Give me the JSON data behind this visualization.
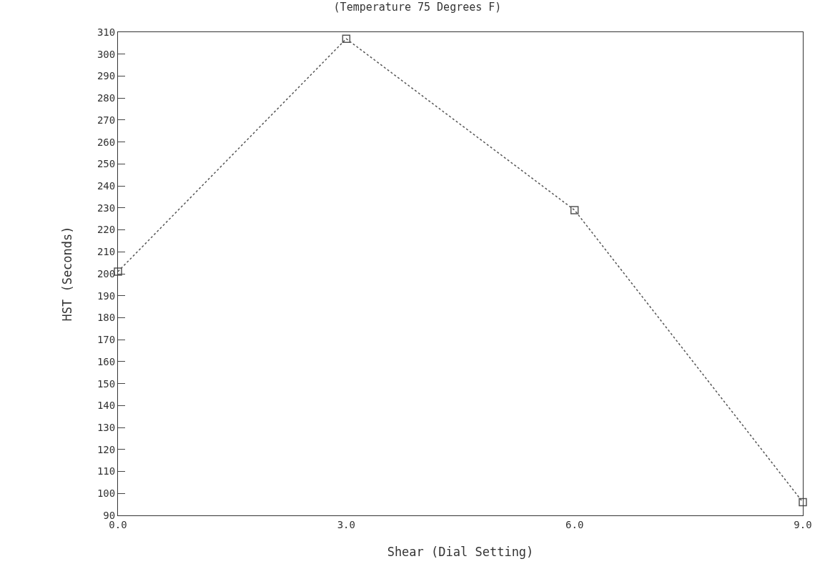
{
  "chart_data": {
    "type": "line",
    "title": "(Temperature 75 Degrees F)",
    "xlabel": "Shear (Dial Setting)",
    "ylabel": "HST (Seconds)",
    "x": [
      0,
      3,
      6,
      9
    ],
    "series": [
      {
        "color": "#555555",
        "values": [
          201,
          307,
          229,
          96
        ]
      }
    ],
    "xlim": [
      0,
      9
    ],
    "xticks": [
      {
        "value": 0,
        "label": "0.0"
      },
      {
        "value": 3,
        "label": "3.0"
      },
      {
        "value": 6,
        "label": "6.0"
      },
      {
        "value": 9,
        "label": "9.0"
      }
    ],
    "ylim": [
      90,
      310
    ],
    "yticks": [
      90,
      100,
      110,
      120,
      130,
      140,
      150,
      160,
      170,
      180,
      190,
      200,
      210,
      220,
      230,
      240,
      250,
      260,
      270,
      280,
      290,
      300,
      310
    ],
    "legend": false,
    "marker": "square",
    "line_style": "dotted"
  }
}
